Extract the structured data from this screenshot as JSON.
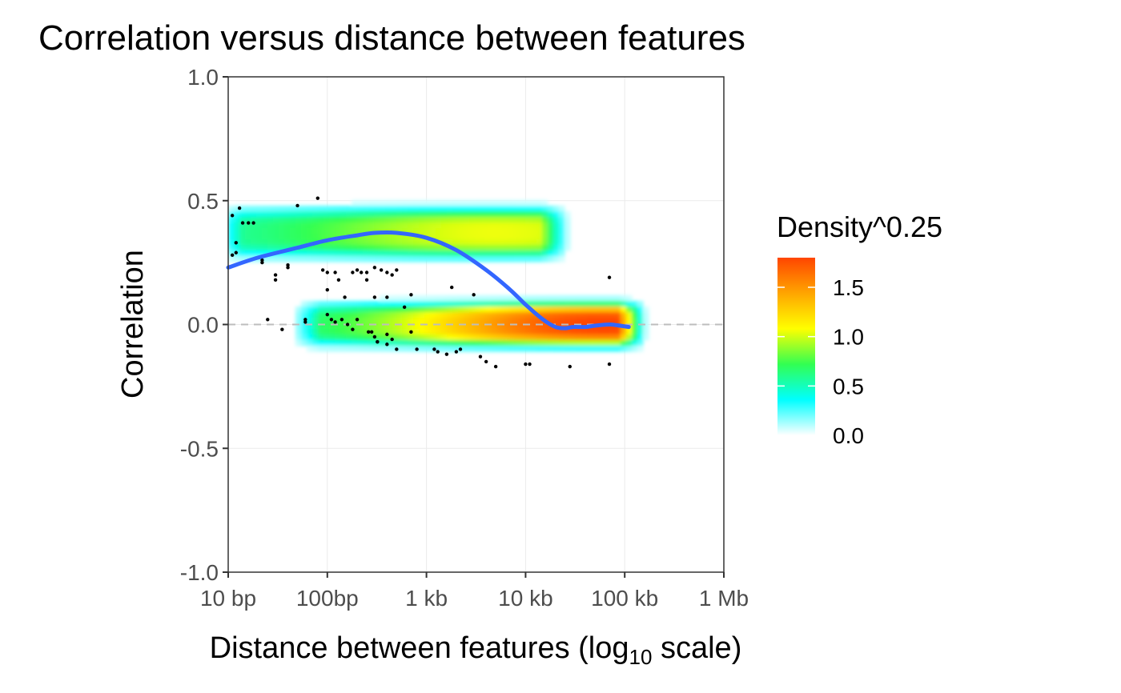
{
  "chart_data": {
    "type": "heatmap",
    "title": "Correlation versus distance between features",
    "xlabel": "Distance between features (log10 scale)",
    "xlabel_main": "Distance between features (log",
    "xlabel_sub": "10",
    "xlabel_tail": " scale)",
    "ylabel": "Correlation",
    "x_scale": "log10",
    "xlim": [
      10,
      1000000
    ],
    "ylim": [
      -1.0,
      1.0
    ],
    "x_ticks": [
      {
        "value": 10,
        "label": "10 bp"
      },
      {
        "value": 100,
        "label": "100bp"
      },
      {
        "value": 1000,
        "label": "1 kb"
      },
      {
        "value": 10000,
        "label": "10 kb"
      },
      {
        "value": 100000,
        "label": "100 kb"
      },
      {
        "value": 1000000,
        "label": "1 Mb"
      }
    ],
    "y_ticks": [
      {
        "value": 1.0,
        "label": "1.0"
      },
      {
        "value": 0.5,
        "label": "0.5"
      },
      {
        "value": 0.0,
        "label": "0.0"
      },
      {
        "value": -0.5,
        "label": "-0.5"
      },
      {
        "value": -1.0,
        "label": "-1.0"
      }
    ],
    "grid": true,
    "reference_line": {
      "y": 0,
      "style": "dashed",
      "color": "#bdbdbd"
    },
    "legend": {
      "title": "Density^0.25",
      "placement": "right",
      "range": [
        0.0,
        1.8
      ],
      "breaks": [
        {
          "value": 1.5,
          "label": "1.5"
        },
        {
          "value": 1.0,
          "label": "1.0"
        },
        {
          "value": 0.5,
          "label": "0.5"
        },
        {
          "value": 0.0,
          "label": "0.0"
        }
      ],
      "colors": [
        "#ffffff",
        "#00ffff",
        "#32ff52",
        "#ffff00",
        "#ffa500",
        "#ff4500"
      ]
    },
    "density_clusters": [
      {
        "x_from": 10,
        "x_to": 20000,
        "y_center": 0.37,
        "y_spread": 0.08,
        "peak": 1.05,
        "peak_x": 5000
      },
      {
        "x_from": 60,
        "x_to": 120000,
        "y_center": 0.0,
        "y_spread": 0.07,
        "peak": 1.8,
        "peak_x": 60000
      }
    ],
    "smooth_line": {
      "color": "#3366ff",
      "x": [
        10,
        20,
        50,
        100,
        200,
        300,
        500,
        1000,
        2000,
        4000,
        7000,
        10000,
        15000,
        20000,
        25000,
        30000,
        40000,
        50000,
        70000,
        90000,
        110000
      ],
      "y": [
        0.23,
        0.27,
        0.31,
        0.34,
        0.36,
        0.37,
        0.37,
        0.35,
        0.3,
        0.22,
        0.14,
        0.08,
        0.02,
        -0.01,
        -0.015,
        -0.01,
        -0.01,
        -0.005,
        0.0,
        -0.005,
        -0.01
      ]
    },
    "outlier_points": {
      "x": [
        11,
        12,
        13,
        14,
        16,
        18,
        11,
        12,
        22,
        22,
        30,
        30,
        40,
        40,
        50,
        60,
        80,
        90,
        100,
        100,
        120,
        130,
        150,
        180,
        200,
        220,
        250,
        250,
        300,
        300,
        350,
        400,
        400,
        450,
        500,
        600,
        700,
        120,
        160,
        280,
        320,
        400,
        700,
        800,
        1200,
        1300,
        1600,
        2000,
        2200,
        1800,
        3000,
        3500,
        4000,
        5000,
        10000,
        11000,
        28000,
        70000,
        70000,
        25,
        35,
        60,
        100,
        110,
        140,
        180,
        200,
        260,
        300,
        320,
        400,
        450,
        500
      ],
      "y": [
        0.44,
        0.33,
        0.47,
        0.41,
        0.41,
        0.41,
        0.28,
        0.29,
        0.26,
        0.25,
        0.2,
        0.18,
        0.23,
        0.24,
        0.48,
        0.01,
        0.51,
        0.22,
        0.14,
        0.21,
        0.21,
        0.18,
        0.11,
        0.21,
        0.22,
        0.21,
        0.18,
        0.21,
        0.23,
        0.11,
        0.22,
        0.21,
        0.11,
        0.2,
        0.22,
        0.07,
        0.12,
        0.01,
        0.0,
        -0.03,
        -0.07,
        -0.04,
        -0.03,
        -0.1,
        -0.1,
        -0.11,
        -0.12,
        -0.11,
        -0.1,
        0.15,
        0.12,
        -0.13,
        -0.15,
        -0.17,
        -0.16,
        -0.16,
        -0.17,
        0.19,
        -0.16,
        0.02,
        -0.02,
        0.02,
        0.04,
        0.02,
        0.02,
        -0.02,
        0.02,
        -0.03,
        -0.05,
        -0.07,
        -0.08,
        -0.06,
        -0.1
      ]
    }
  }
}
